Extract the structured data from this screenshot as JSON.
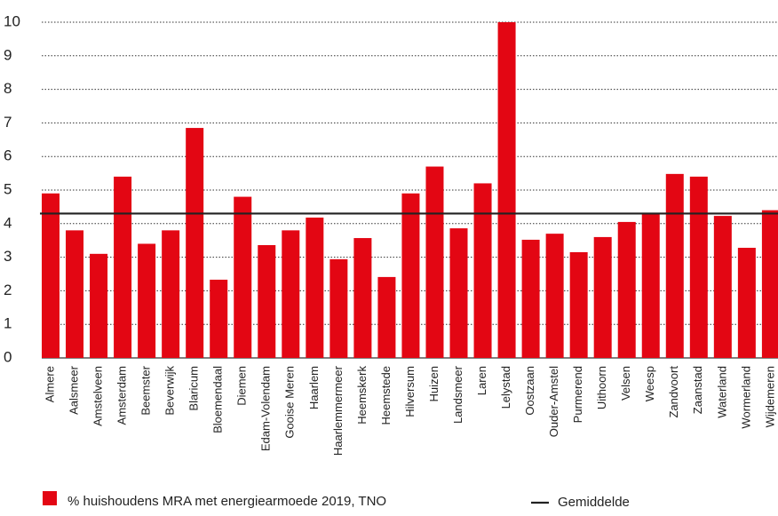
{
  "chart_data": {
    "type": "bar",
    "categories": [
      "Almere",
      "Aalsmeer",
      "Amstelveen",
      "Amsterdam",
      "Beemster",
      "Beverwijk",
      "Blaricum",
      "Bloemendaal",
      "Diemen",
      "Edam-Volendam",
      "Gooise Meren",
      "Haarlem",
      "Haarlemmermeer",
      "Heemskerk",
      "Heemstede",
      "Hilversum",
      "Huizen",
      "Landsmeer",
      "Laren",
      "Lelystad",
      "Oostzaan",
      "Ouder-Amstel",
      "Purmerend",
      "Uithoorn",
      "Velsen",
      "Weesp",
      "Zandvoort",
      "Zaanstad",
      "Waterland",
      "Wormerland",
      "Wijdemeren"
    ],
    "series": [
      {
        "name": "% huishoudens MRA met energiearmoede 2019, TNO",
        "color": "#e30613",
        "values": [
          4.9,
          3.8,
          3.1,
          5.4,
          3.4,
          3.8,
          6.85,
          2.33,
          4.8,
          3.36,
          3.8,
          4.18,
          2.94,
          3.57,
          2.41,
          4.9,
          5.7,
          3.86,
          5.2,
          10,
          3.52,
          3.7,
          3.15,
          3.6,
          4.05,
          4.3,
          5.48,
          5.4,
          4.23,
          3.28,
          4.4
        ]
      }
    ],
    "reference_line": {
      "name": "Gemiddelde",
      "value": 4.3,
      "color": "#222222"
    },
    "ylim": [
      0,
      10
    ],
    "yticks": [
      0,
      1,
      2,
      3,
      4,
      5,
      6,
      7,
      8,
      9,
      10
    ],
    "grid": true
  }
}
